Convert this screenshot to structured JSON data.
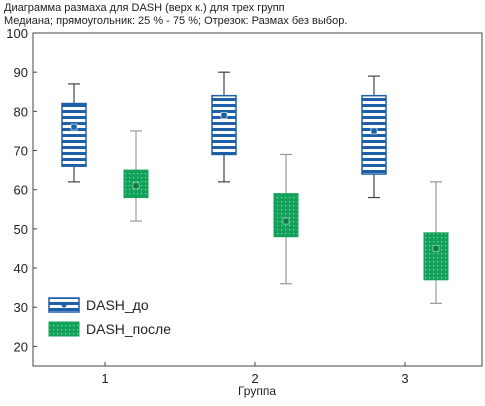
{
  "chart_data": {
    "type": "box",
    "title": "Диаграмма размаха для DASH (верх к.) для трех групп",
    "subtitle": "Медиана; прямоугольник: 25 % - 75 %; Отрезок: Размах без выбор.",
    "xlabel": "Группа",
    "ylabel": "",
    "categories": [
      "1",
      "2",
      "3"
    ],
    "ylim": [
      15,
      100
    ],
    "yticks": [
      20,
      30,
      40,
      50,
      60,
      70,
      80,
      90,
      100
    ],
    "grid": false,
    "legend_position": "bottom-left",
    "series": [
      {
        "name": "DASH_до",
        "color": "#1f5fa8",
        "fill": "striped-blue",
        "boxes": [
          {
            "min": 62,
            "q1": 66,
            "median": 76,
            "q3": 82,
            "max": 87
          },
          {
            "min": 62,
            "q1": 69,
            "median": 79,
            "q3": 84,
            "max": 90
          },
          {
            "min": 58,
            "q1": 64,
            "median": 75,
            "q3": 84,
            "max": 89
          }
        ]
      },
      {
        "name": "DASH_после",
        "color": "#12a05a",
        "fill": "dotted-green",
        "boxes": [
          {
            "min": 52,
            "q1": 58,
            "median": 61,
            "q3": 65,
            "max": 75
          },
          {
            "min": 36,
            "q1": 48,
            "median": 52,
            "q3": 59,
            "max": 69
          },
          {
            "min": 31,
            "q1": 37,
            "median": 45,
            "q3": 49,
            "max": 62
          }
        ]
      }
    ]
  }
}
